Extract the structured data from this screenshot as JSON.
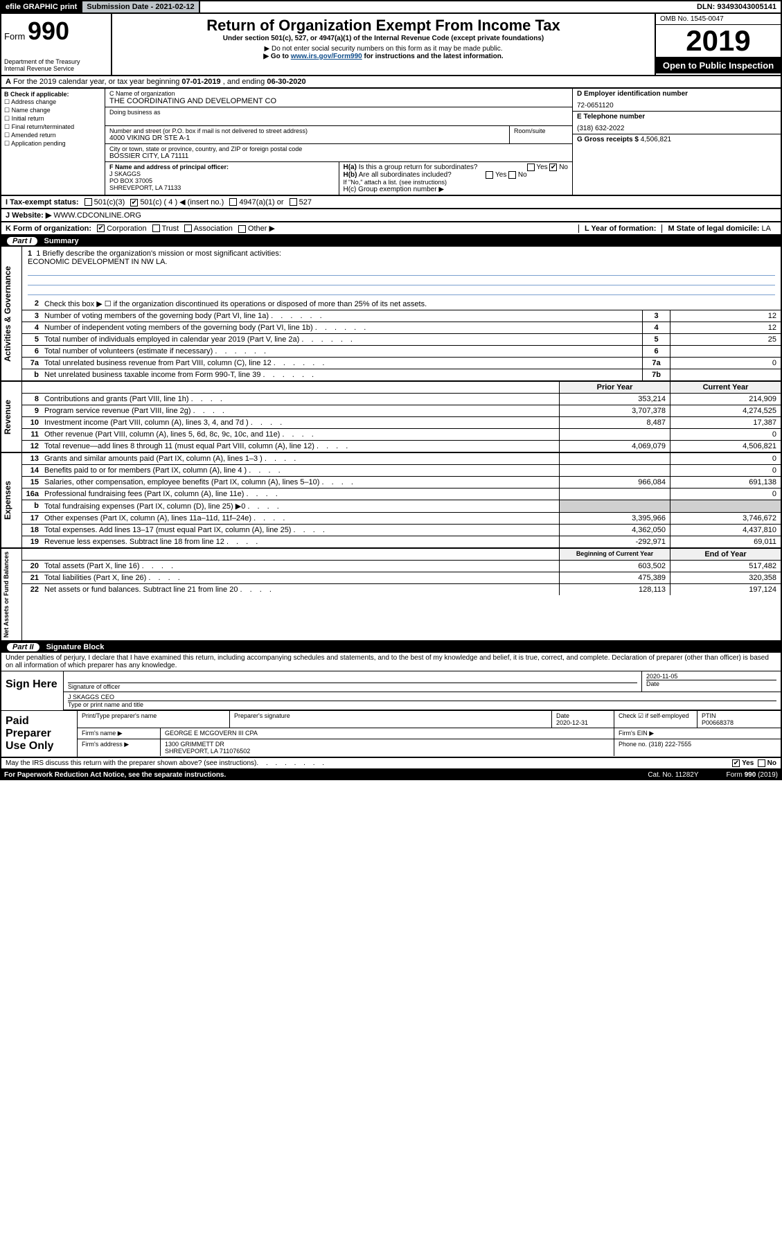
{
  "topbar": {
    "efile": "efile GRAPHIC print",
    "sub_label": "Submission Date - 2021-02-12",
    "dln": "DLN: 93493043005141"
  },
  "header": {
    "form_word": "Form",
    "form_num": "990",
    "dept": "Department of the Treasury",
    "irs": "Internal Revenue Service",
    "title": "Return of Organization Exempt From Income Tax",
    "sub1": "Under section 501(c), 527, or 4947(a)(1) of the Internal Revenue Code (except private foundations)",
    "sub2": "▶ Do not enter social security numbers on this form as it may be made public.",
    "sub3_pre": "▶ Go to ",
    "sub3_link": "www.irs.gov/Form990",
    "sub3_post": " for instructions and the latest information.",
    "omb": "OMB No. 1545-0047",
    "year": "2019",
    "open": "Open to Public Inspection"
  },
  "line_a": {
    "text_pre": "For the 2019 calendar year, or tax year beginning ",
    "begin": "07-01-2019",
    "text_mid": " , and ending ",
    "end": "06-30-2020"
  },
  "b": {
    "label": "B Check if applicable:",
    "items": [
      "Address change",
      "Name change",
      "Initial return",
      "Final return/terminated",
      "Amended return",
      "Application pending"
    ]
  },
  "c": {
    "name_label": "C Name of organization",
    "name": "THE COORDINATING AND DEVELOPMENT CO",
    "dba_label": "Doing business as",
    "street_label": "Number and street (or P.O. box if mail is not delivered to street address)",
    "street": "4000 VIKING DR STE A-1",
    "room_label": "Room/suite",
    "city_label": "City or town, state or province, country, and ZIP or foreign postal code",
    "city": "BOSSIER CITY, LA  71111"
  },
  "d": {
    "label": "D Employer identification number",
    "val": "72-0651120"
  },
  "e": {
    "label": "E Telephone number",
    "val": "(318) 632-2022"
  },
  "g": {
    "label": "G Gross receipts $ ",
    "val": "4,506,821"
  },
  "f": {
    "label": "F Name and address of principal officer:",
    "name": "J SKAGGS",
    "po": "PO BOX 37005",
    "city": "SHREVEPORT, LA  71133"
  },
  "h": {
    "a_label": "H(a) Is this a group return for subordinates?",
    "a_yes": "Yes",
    "a_no": "No",
    "b_label": "H(b) Are all subordinates included?",
    "b_note": "If \"No,\" attach a list. (see instructions)",
    "c_label": "H(c) Group exemption number ▶"
  },
  "i": {
    "label": "I Tax-exempt status:",
    "opts": [
      "501(c)(3)",
      "501(c) ( 4 ) ◀ (insert no.)",
      "4947(a)(1) or",
      "527"
    ]
  },
  "j": {
    "label": "J Website: ▶",
    "val": "WWW.CDCONLINE.ORG"
  },
  "k": {
    "label": "K Form of organization:",
    "opts": [
      "Corporation",
      "Trust",
      "Association",
      "Other ▶"
    ],
    "l_label": "L Year of formation:",
    "m_label": "M State of legal domicile: ",
    "m_val": "LA"
  },
  "parts": {
    "p1": "Part I",
    "p1_title": "Summary",
    "p2": "Part II",
    "p2_title": "Signature Block"
  },
  "summary": {
    "line1_label": "1  Briefly describe the organization's mission or most significant activities:",
    "line1_val": "ECONOMIC DEVELOPMENT IN NW LA.",
    "line2": "Check this box ▶ ☐  if the organization discontinued its operations or disposed of more than 25% of its net assets.",
    "lines_gov": [
      {
        "n": "3",
        "t": "Number of voting members of the governing body (Part VI, line 1a)",
        "box": "3",
        "v": "12"
      },
      {
        "n": "4",
        "t": "Number of independent voting members of the governing body (Part VI, line 1b)",
        "box": "4",
        "v": "12"
      },
      {
        "n": "5",
        "t": "Total number of individuals employed in calendar year 2019 (Part V, line 2a)",
        "box": "5",
        "v": "25"
      },
      {
        "n": "6",
        "t": "Total number of volunteers (estimate if necessary)",
        "box": "6",
        "v": ""
      },
      {
        "n": "7a",
        "t": "Total unrelated business revenue from Part VIII, column (C), line 12",
        "box": "7a",
        "v": "0"
      },
      {
        "n": "b",
        "t": "Net unrelated business taxable income from Form 990-T, line 39",
        "box": "7b",
        "v": ""
      }
    ],
    "prior_h": "Prior Year",
    "curr_h": "Current Year",
    "rev": [
      {
        "n": "8",
        "t": "Contributions and grants (Part VIII, line 1h)",
        "p": "353,214",
        "c": "214,909"
      },
      {
        "n": "9",
        "t": "Program service revenue (Part VIII, line 2g)",
        "p": "3,707,378",
        "c": "4,274,525"
      },
      {
        "n": "10",
        "t": "Investment income (Part VIII, column (A), lines 3, 4, and 7d )",
        "p": "8,487",
        "c": "17,387"
      },
      {
        "n": "11",
        "t": "Other revenue (Part VIII, column (A), lines 5, 6d, 8c, 9c, 10c, and 11e)",
        "p": "",
        "c": "0"
      },
      {
        "n": "12",
        "t": "Total revenue—add lines 8 through 11 (must equal Part VIII, column (A), line 12)",
        "p": "4,069,079",
        "c": "4,506,821"
      }
    ],
    "exp": [
      {
        "n": "13",
        "t": "Grants and similar amounts paid (Part IX, column (A), lines 1–3 )",
        "p": "",
        "c": "0"
      },
      {
        "n": "14",
        "t": "Benefits paid to or for members (Part IX, column (A), line 4 )",
        "p": "",
        "c": "0"
      },
      {
        "n": "15",
        "t": "Salaries, other compensation, employee benefits (Part IX, column (A), lines 5–10)",
        "p": "966,084",
        "c": "691,138"
      },
      {
        "n": "16a",
        "t": "Professional fundraising fees (Part IX, column (A), line 11e)",
        "p": "",
        "c": "0"
      },
      {
        "n": "b",
        "t": "Total fundraising expenses (Part IX, column (D), line 25) ▶0",
        "p": "gray",
        "c": "gray"
      },
      {
        "n": "17",
        "t": "Other expenses (Part IX, column (A), lines 11a–11d, 11f–24e)",
        "p": "3,395,966",
        "c": "3,746,672"
      },
      {
        "n": "18",
        "t": "Total expenses. Add lines 13–17 (must equal Part IX, column (A), line 25)",
        "p": "4,362,050",
        "c": "4,437,810"
      },
      {
        "n": "19",
        "t": "Revenue less expenses. Subtract line 18 from line 12",
        "p": "-292,971",
        "c": "69,011"
      }
    ],
    "begin_h": "Beginning of Current Year",
    "end_h": "End of Year",
    "net": [
      {
        "n": "20",
        "t": "Total assets (Part X, line 16)",
        "p": "603,502",
        "c": "517,482"
      },
      {
        "n": "21",
        "t": "Total liabilities (Part X, line 26)",
        "p": "475,389",
        "c": "320,358"
      },
      {
        "n": "22",
        "t": "Net assets or fund balances. Subtract line 21 from line 20",
        "p": "128,113",
        "c": "197,124"
      }
    ]
  },
  "tabs": {
    "gov": "Activities & Governance",
    "rev": "Revenue",
    "exp": "Expenses",
    "net": "Net Assets or Fund Balances"
  },
  "sig": {
    "penalty": "Under penalties of perjury, I declare that I have examined this return, including accompanying schedules and statements, and to the best of my knowledge and belief, it is true, correct, and complete. Declaration of preparer (other than officer) is based on all information of which preparer has any knowledge.",
    "sign_here": "Sign Here",
    "sig_officer": "Signature of officer",
    "date": "2020-11-05",
    "date_label": "Date",
    "name_title": "J SKAGGS CEO",
    "name_title_label": "Type or print name and title",
    "paid": "Paid Preparer Use Only",
    "prep_name_h": "Print/Type preparer's name",
    "prep_sig_h": "Preparer's signature",
    "prep_date_h": "Date",
    "prep_date": "2020-12-31",
    "self_emp": "Check ☑ if self-employed",
    "ptin_h": "PTIN",
    "ptin": "P00668378",
    "firm_name_l": "Firm's name    ▶",
    "firm_name": "GEORGE E MCGOVERN III CPA",
    "firm_ein_l": "Firm's EIN ▶",
    "firm_addr_l": "Firm's address ▶",
    "firm_addr1": "1300 GRIMMETT DR",
    "firm_addr2": "SHREVEPORT, LA  711076502",
    "phone_l": "Phone no. ",
    "phone": "(318) 222-7555",
    "discuss": "May the IRS discuss this return with the preparer shown above? (see instructions)",
    "yes": "Yes",
    "no": "No"
  },
  "footer": {
    "pra": "For Paperwork Reduction Act Notice, see the separate instructions.",
    "cat": "Cat. No. 11282Y",
    "form": "Form 990 (2019)"
  }
}
